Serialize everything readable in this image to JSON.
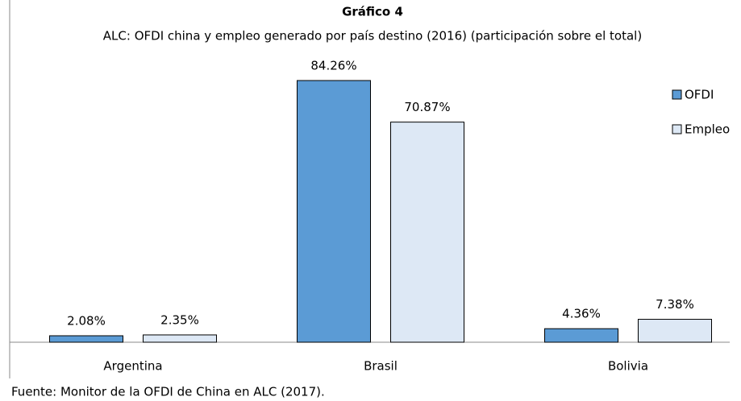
{
  "chart_data": {
    "type": "bar",
    "title": "Gráfico 4",
    "subtitle": "ALC: OFDI china y empleo generado por país destino (2016) (participación sobre el total)",
    "categories": [
      "Argentina",
      "Brasil",
      "Bolivia"
    ],
    "series": [
      {
        "name": "OFDI",
        "color": "#5b9bd5",
        "values": [
          2.08,
          84.26,
          4.36
        ],
        "value_labels": [
          "2.08%",
          "84.26%",
          "4.36%"
        ]
      },
      {
        "name": "Empleo",
        "color": "#dde8f5",
        "values": [
          2.35,
          70.87,
          7.38
        ],
        "value_labels": [
          "2.35%",
          "70.87%",
          "7.38%"
        ]
      }
    ],
    "legend": "right",
    "source": "Fuente: Monitor de la OFDI de China en ALC (2017)."
  }
}
